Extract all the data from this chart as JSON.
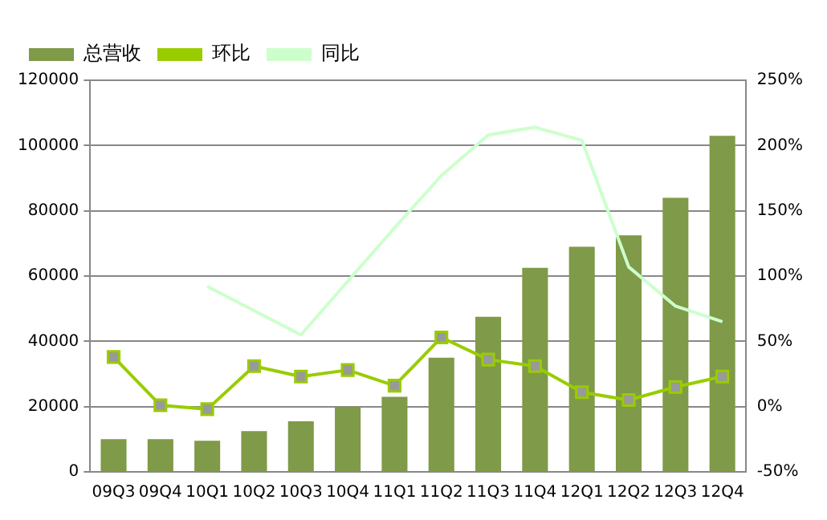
{
  "chart_data": {
    "type": "bar",
    "categories": [
      "09Q3",
      "09Q4",
      "10Q1",
      "10Q2",
      "10Q3",
      "10Q4",
      "11Q1",
      "11Q2",
      "11Q3",
      "11Q4",
      "12Q1",
      "12Q2",
      "12Q3",
      "12Q4"
    ],
    "series": [
      {
        "name": "总营收",
        "color": "#7f9a48",
        "values": [
          10000,
          10000,
          9500,
          12500,
          15500,
          20000,
          23000,
          35000,
          47500,
          62500,
          69000,
          72500,
          84000,
          103000
        ]
      },
      {
        "name": "环比",
        "type": "line",
        "axis": "y2",
        "color": "#99cc00",
        "marker": "square",
        "values": [
          38,
          1,
          -2,
          31,
          23,
          28,
          16,
          53,
          36,
          31,
          11,
          5,
          15,
          23
        ]
      },
      {
        "name": "同比",
        "type": "line",
        "axis": "y2",
        "color": "#ccffcc",
        "marker": "none",
        "values": [
          null,
          null,
          92,
          null,
          55,
          96,
          137,
          177,
          208,
          214,
          204,
          107,
          77,
          65
        ]
      }
    ],
    "ylim": [
      0,
      120000
    ],
    "yticks": [
      0,
      20000,
      40000,
      60000,
      80000,
      100000,
      120000
    ],
    "y2lim": [
      -50,
      250
    ],
    "y2ticks": [
      {
        "value": -50,
        "label": "-50%"
      },
      {
        "value": 0,
        "label": "0%"
      },
      {
        "value": 50,
        "label": "50%"
      },
      {
        "value": 100,
        "label": "100%"
      },
      {
        "value": 150,
        "label": "150%"
      },
      {
        "value": 200,
        "label": "200%"
      },
      {
        "value": 250,
        "label": "250%"
      }
    ],
    "grid": "y",
    "legend": "top left"
  }
}
